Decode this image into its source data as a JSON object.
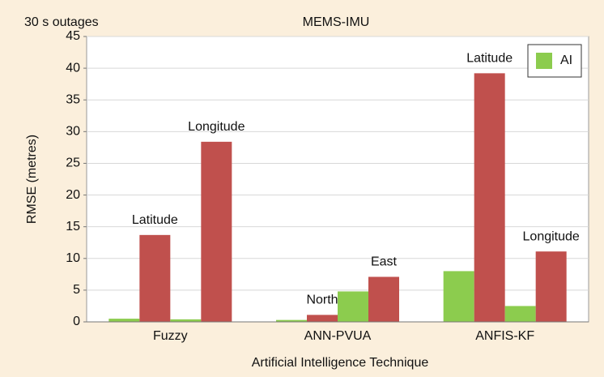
{
  "chart_data": {
    "type": "bar",
    "title": "MEMS-IMU",
    "subtitle": "30 s outages",
    "x_label": "Artificial Intelligence Technique",
    "y_label": "RMSE (metres)",
    "categories": [
      "Fuzzy",
      "ANN-PVUA",
      "ANFIS-KF"
    ],
    "series": [
      {
        "name": "AI",
        "color": "#8ccc4e",
        "values": [
          0.5,
          0.3,
          8.0
        ]
      },
      {
        "color": "#c0504d",
        "values": [
          13.7,
          1.1,
          39.2
        ],
        "labels": [
          "Latitude",
          "North",
          "Latitude"
        ]
      },
      {
        "color": "#8ccc4e",
        "values": [
          0.4,
          4.8,
          2.5
        ]
      },
      {
        "color": "#c0504d",
        "values": [
          28.4,
          7.1,
          11.1
        ],
        "labels": [
          "Longitude",
          "East",
          "Longitude"
        ]
      }
    ],
    "ylim": [
      0,
      45
    ],
    "yticks": [
      0,
      5,
      10,
      15,
      20,
      25,
      30,
      35,
      40,
      45
    ],
    "grid": true,
    "legend": "upper right"
  }
}
